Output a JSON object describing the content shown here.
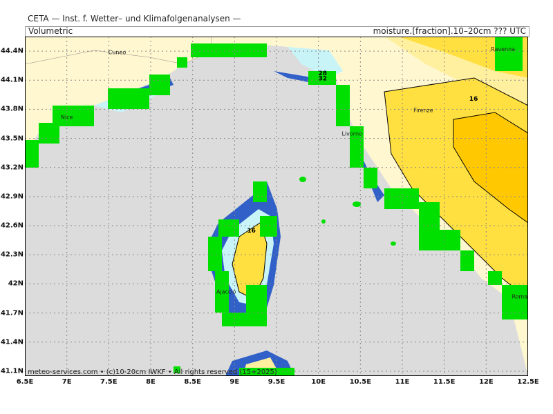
{
  "header": {
    "institute": "CETA — Inst. f. Wetter– und Klimafolgenanalysen —",
    "product": "Volumetric",
    "field": "moisture.[fraction].10–20cm ??? UTC"
  },
  "footer": {
    "credit": "meteo-services.com • (c)10-20cm IWKF • All rights reserved (15+2025)"
  },
  "axes": {
    "lat_labels": [
      "44.4N",
      "44.1N",
      "43.8N",
      "43.5N",
      "43.2N",
      "42.9N",
      "42.6N",
      "42.3N",
      "42N",
      "41.7N",
      "41.4N",
      "41.1N"
    ],
    "lon_labels": [
      "6.5E",
      "7E",
      "7.5E",
      "8E",
      "8.5E",
      "9E",
      "9.5E",
      "10E",
      "10.5E",
      "11E",
      "11.5E",
      "12E",
      "12.5E"
    ]
  },
  "cities": [
    {
      "name": "Cuneo",
      "lon": 7.6,
      "lat": 44.37
    },
    {
      "name": "Ravenna",
      "lon": 12.2,
      "lat": 44.4
    },
    {
      "name": "Nice",
      "lon": 7.0,
      "lat": 43.7
    },
    {
      "name": "Firenze",
      "lon": 11.25,
      "lat": 43.77
    },
    {
      "name": "Livorno",
      "lon": 10.4,
      "lat": 43.53
    },
    {
      "name": "Ajaccio",
      "lon": 8.9,
      "lat": 41.9
    },
    {
      "name": "Roma",
      "lon": 12.4,
      "lat": 41.85
    }
  ],
  "contour_labels": [
    {
      "text": "16",
      "lon": 11.85,
      "lat": 43.89
    },
    {
      "text": "16",
      "lon": 9.2,
      "lat": 42.53
    },
    {
      "text": "28",
      "lon": 10.05,
      "lat": 44.15
    },
    {
      "text": "32",
      "lon": 10.05,
      "lat": 44.1
    }
  ],
  "colors": {
    "sea": "#dcdcdc",
    "mask": "#00e000",
    "very_dry": "#fff7d0",
    "dry": "#fff0a0",
    "medium": "#ffe040",
    "moist": "#ffc800",
    "wet_light": "#c8f4f8",
    "wet": "#3060c8",
    "grid": "#888888"
  }
}
